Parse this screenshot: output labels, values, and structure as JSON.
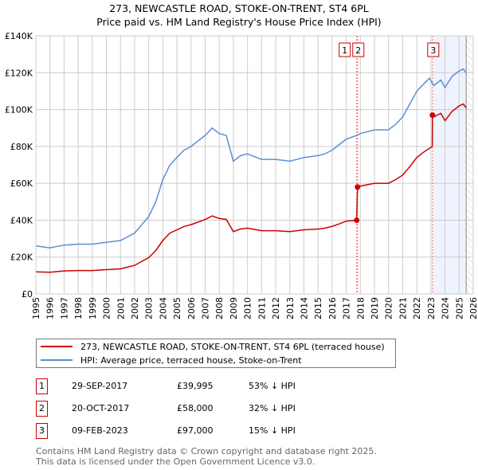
{
  "title_line1": "273, NEWCASTLE ROAD, STOKE-ON-TRENT, ST4 6PL",
  "title_line2": "Price paid vs. HM Land Registry's House Price Index (HPI)",
  "colors": {
    "property": "#cc0000",
    "hpi": "#5b8fd4",
    "grid": "#cccccc",
    "shade": "#eef3fd"
  },
  "chart_data": {
    "type": "line",
    "title": "Price paid vs. HM Land Registry's House Price Index (HPI)",
    "xlim": [
      1995,
      2026
    ],
    "ylim": [
      0,
      140000
    ],
    "x_ticks": [
      "1995",
      "1996",
      "1997",
      "1998",
      "1999",
      "2000",
      "2001",
      "2002",
      "2003",
      "2004",
      "2005",
      "2006",
      "2007",
      "2008",
      "2009",
      "2010",
      "2011",
      "2012",
      "2013",
      "2014",
      "2015",
      "2016",
      "2017",
      "2018",
      "2019",
      "2020",
      "2021",
      "2022",
      "2023",
      "2024",
      "2025",
      "2026"
    ],
    "y_ticks": [
      {
        "v": 0,
        "label": "£0"
      },
      {
        "v": 20000,
        "label": "£20K"
      },
      {
        "v": 40000,
        "label": "£40K"
      },
      {
        "v": 60000,
        "label": "£60K"
      },
      {
        "v": 80000,
        "label": "£80K"
      },
      {
        "v": 100000,
        "label": "£100K"
      },
      {
        "v": 120000,
        "label": "£120K"
      },
      {
        "v": 140000,
        "label": "£140K"
      }
    ],
    "grid": true,
    "shaded_range": [
      2023.11,
      2025.5
    ],
    "hatched_from": 2025.5,
    "series": [
      {
        "name": "273, NEWCASTLE ROAD, STOKE-ON-TRENT, ST4 6PL (terraced house)",
        "color": "#cc0000",
        "x": [
          1995,
          1996,
          1997,
          1998,
          1999,
          2000,
          2001,
          2002,
          2003,
          2003.5,
          2004,
          2004.5,
          2005,
          2005.5,
          2006,
          2007,
          2007.5,
          2008,
          2008.5,
          2009,
          2009.5,
          2010,
          2011,
          2012,
          2013,
          2014,
          2015,
          2015.5,
          2016,
          2016.5,
          2017,
          2017.74,
          2017.8,
          2018,
          2019,
          2020,
          2020.5,
          2021,
          2021.5,
          2022,
          2022.5,
          2023.1,
          2023.11,
          2023.2,
          2023.7,
          2024,
          2024.5,
          2025,
          2025.3,
          2025.5
        ],
        "y": [
          12000,
          11800,
          12500,
          12700,
          12700,
          13200,
          13600,
          15500,
          19700,
          23500,
          29000,
          33000,
          34800,
          36600,
          37600,
          40400,
          42300,
          40900,
          40400,
          33800,
          35200,
          35700,
          34300,
          34300,
          33800,
          34800,
          35200,
          35700,
          36700,
          38000,
          39500,
          39995,
          58000,
          58500,
          60000,
          60000,
          62000,
          64500,
          69000,
          74000,
          77000,
          80000,
          97000,
          96000,
          98000,
          94000,
          99000,
          102000,
          103000,
          101000
        ]
      },
      {
        "name": "HPI: Average price, terraced house, Stoke-on-Trent",
        "color": "#5b8fd4",
        "x": [
          1995,
          1996,
          1997,
          1998,
          1999,
          2000,
          2001,
          2002,
          2003,
          2003.5,
          2004,
          2004.5,
          2005,
          2005.5,
          2006,
          2007,
          2007.5,
          2008,
          2008.5,
          2009,
          2009.5,
          2010,
          2011,
          2012,
          2013,
          2014,
          2015,
          2015.5,
          2016,
          2016.5,
          2017,
          2017.75,
          2018,
          2019,
          2020,
          2020.5,
          2021,
          2021.5,
          2022,
          2022.5,
          2022.9,
          2023.2,
          2023.7,
          2024,
          2024.5,
          2025,
          2025.3,
          2025.5
        ],
        "y": [
          26000,
          25000,
          26500,
          27000,
          27000,
          28000,
          29000,
          33000,
          42000,
          50000,
          62000,
          70000,
          74000,
          78000,
          80000,
          86000,
          90000,
          87000,
          86000,
          72000,
          75000,
          76000,
          73000,
          73000,
          72000,
          74000,
          75000,
          76000,
          78000,
          81000,
          84000,
          86000,
          87000,
          89000,
          89000,
          92000,
          96000,
          103000,
          110000,
          114000,
          117000,
          113000,
          116000,
          112000,
          118000,
          121000,
          122000,
          120000
        ]
      }
    ],
    "transactions": [
      {
        "id": "1",
        "x": 2017.74,
        "date": "29-SEP-2017",
        "price": 39995,
        "price_label": "£39,995",
        "hpi_diff": "53% ↓ HPI"
      },
      {
        "id": "2",
        "x": 2017.8,
        "date": "20-OCT-2017",
        "price": 58000,
        "price_label": "£58,000",
        "hpi_diff": "32% ↓ HPI"
      },
      {
        "id": "3",
        "x": 2023.11,
        "date": "09-FEB-2023",
        "price": 97000,
        "price_label": "£97,000",
        "hpi_diff": "15% ↓ HPI"
      }
    ]
  },
  "legend": {
    "property": "273, NEWCASTLE ROAD, STOKE-ON-TRENT, ST4 6PL (terraced house)",
    "hpi": "HPI: Average price, terraced house, Stoke-on-Trent"
  },
  "footer": {
    "line1": "Contains HM Land Registry data © Crown copyright and database right 2025.",
    "line2": "This data is licensed under the Open Government Licence v3.0."
  }
}
